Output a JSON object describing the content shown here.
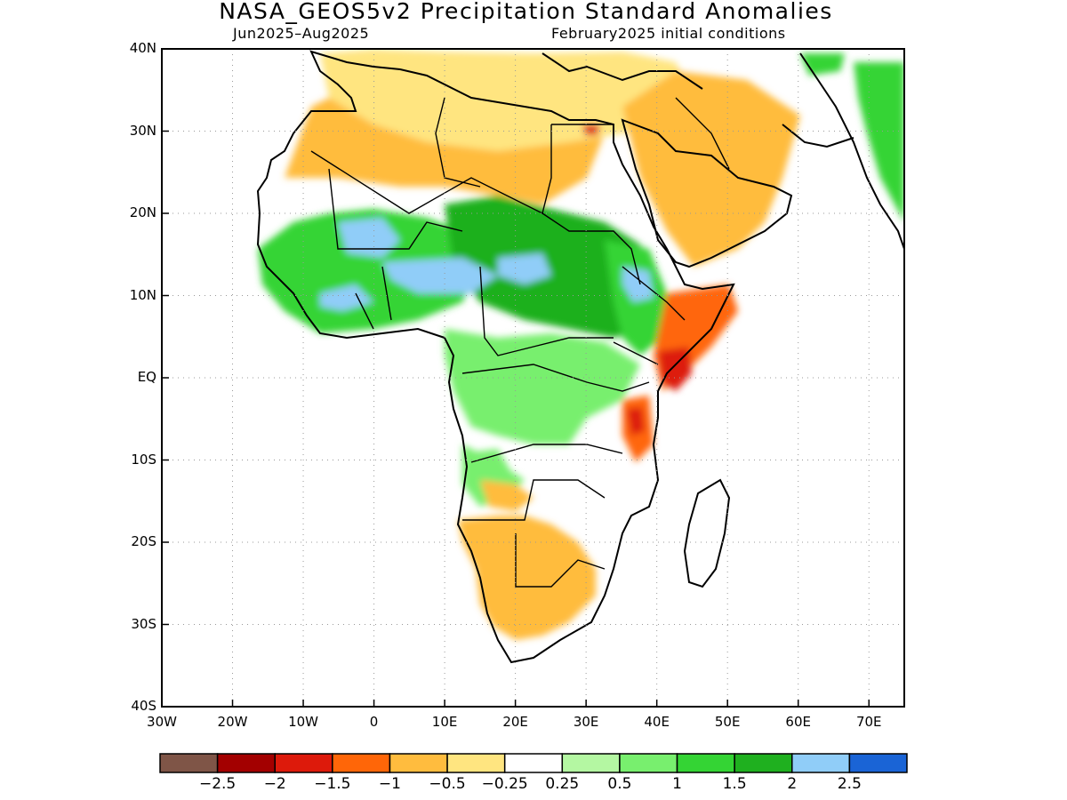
{
  "title": "NASA_GEOS5v2 Precipitation Standard Anomalies",
  "subtitle_left": "Jun2025–Aug2025",
  "subtitle_right": "February2025 initial conditions",
  "y_axis": {
    "labels": [
      "40N",
      "30N",
      "20N",
      "10N",
      "EQ",
      "10S",
      "20S",
      "30S",
      "40S"
    ]
  },
  "x_axis": {
    "labels": [
      "30W",
      "20W",
      "10W",
      "0",
      "10E",
      "20E",
      "30E",
      "40E",
      "50E",
      "60E",
      "70E"
    ]
  },
  "colorbar": {
    "colors": [
      "#7f5547",
      "#a30000",
      "#dd1a0b",
      "#ff6608",
      "#ffbc3e",
      "#ffe580",
      "#ffffff",
      "#b4f7a2",
      "#78ef6e",
      "#34d434",
      "#1fb01f",
      "#90cdf8",
      "#1a64d6"
    ],
    "labels": [
      "−2.5",
      "−2",
      "−1.5",
      "−1",
      "−0.5",
      "−0.25",
      "0.25",
      "0.5",
      "1",
      "1.5",
      "2",
      "2.5"
    ]
  },
  "anomaly_regions": [
    {
      "name": "sahel-west",
      "color": "#34d434"
    },
    {
      "name": "sahel-central",
      "color": "#1fb01f"
    },
    {
      "name": "sahel-east",
      "color": "#34d434"
    },
    {
      "name": "west-africa-blue",
      "color": "#90cdf8"
    },
    {
      "name": "central-africa",
      "color": "#78ef6e"
    },
    {
      "name": "north-africa-dry",
      "color": "#ffbc3e"
    },
    {
      "name": "sahara-dry",
      "color": "#ffe580"
    },
    {
      "name": "arabia-dry",
      "color": "#ffbc3e"
    },
    {
      "name": "horn-dry",
      "color": "#ff6608"
    },
    {
      "name": "kenya-strong-dry",
      "color": "#dd1a0b"
    },
    {
      "name": "southern-africa-dry",
      "color": "#ffbc3e"
    },
    {
      "name": "angola-green",
      "color": "#78ef6e"
    },
    {
      "name": "india-green",
      "color": "#34d434"
    }
  ]
}
